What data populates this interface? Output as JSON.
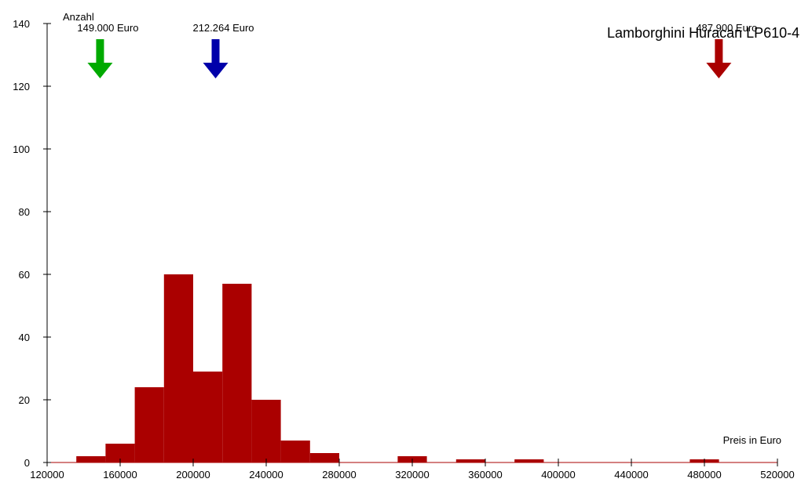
{
  "chart_data": {
    "type": "histogram",
    "title": "Lamborghini Huracan LP610-4",
    "ylabel": "Anzahl",
    "xlabel": "Preis in Euro",
    "color": "#aa0000",
    "bins": [
      136000,
      152000,
      168000,
      184000,
      200000,
      216000,
      232000,
      248000,
      264000,
      280000,
      296000,
      312000,
      328000,
      344000,
      360000,
      376000,
      392000,
      408000,
      424000,
      440000,
      456000,
      472000,
      488000
    ],
    "values": [
      2,
      6,
      24,
      60,
      29,
      57,
      20,
      7,
      3,
      0,
      0,
      2,
      0,
      1,
      0,
      1,
      0,
      0,
      0,
      0,
      0,
      1
    ],
    "xlim": [
      120000,
      520000
    ],
    "ylim": [
      0,
      140
    ],
    "xticks": [
      120000,
      160000,
      200000,
      240000,
      280000,
      320000,
      360000,
      400000,
      440000,
      480000,
      520000
    ],
    "yticks": [
      0,
      20,
      40,
      60,
      80,
      100,
      120,
      140
    ],
    "markers": [
      {
        "value": 149000,
        "label": "149.000 Euro",
        "color": "#00aa00"
      },
      {
        "value": 212264,
        "label": "212.264 Euro",
        "color": "#0000aa"
      },
      {
        "value": 487900,
        "label": "487.900 Euro",
        "color": "#aa0000"
      }
    ]
  }
}
